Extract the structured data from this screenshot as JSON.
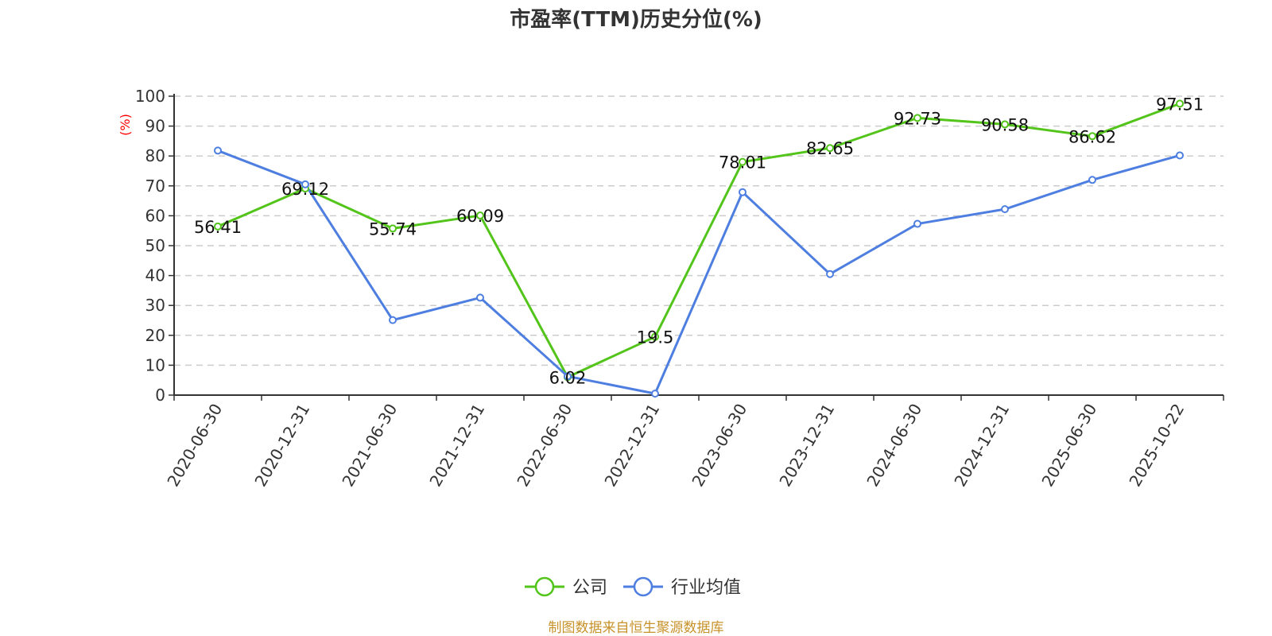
{
  "chart_data": {
    "type": "line",
    "title": "市盈率(TTM)历史分位(%)",
    "ylabel": "(%)",
    "xlabel": "",
    "ylim": [
      0,
      100
    ],
    "yticks": [
      "0",
      "10",
      "20",
      "30",
      "40",
      "50",
      "60",
      "70",
      "80",
      "90",
      "100"
    ],
    "grid": true,
    "legend_position": "bottom",
    "categories": [
      "2020-06-30",
      "2020-12-31",
      "2021-06-30",
      "2021-12-31",
      "2022-06-30",
      "2022-12-31",
      "2023-06-30",
      "2023-12-31",
      "2024-06-30",
      "2024-12-31",
      "2025-06-30",
      "2025-10-22"
    ],
    "series": [
      {
        "name": "公司",
        "color": "#52c41a",
        "show_labels": true,
        "values": [
          56.41,
          69.12,
          55.74,
          60.09,
          6.02,
          19.5,
          78.01,
          82.65,
          92.73,
          90.58,
          86.62,
          97.51
        ],
        "labels": [
          "56.41",
          "69.12",
          "55.74",
          "60.09",
          "6.02",
          "19.5",
          "78.01",
          "82.65",
          "92.73",
          "90.58",
          "86.62",
          "97.51"
        ]
      },
      {
        "name": "行业均值",
        "color": "#4e7fe0",
        "show_labels": false,
        "values": [
          81.8,
          70.5,
          25.1,
          32.6,
          6.3,
          0.5,
          67.9,
          40.5,
          57.3,
          62.2,
          72.0,
          80.2
        ]
      }
    ],
    "source": "制图数据来自恒生聚源数据库"
  }
}
